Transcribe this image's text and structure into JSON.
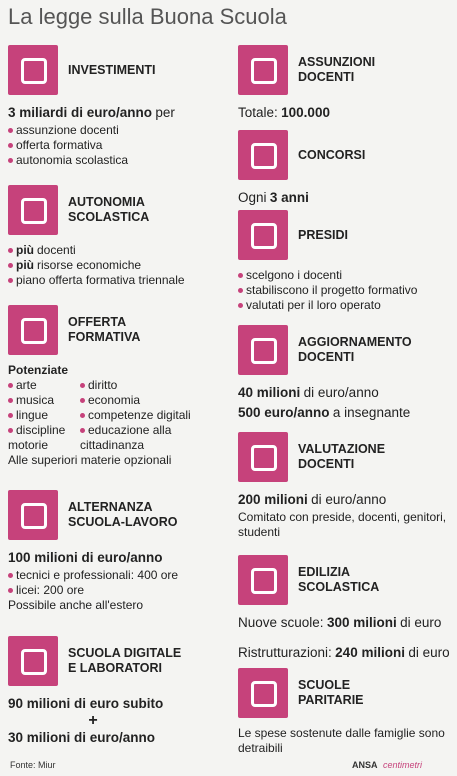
{
  "title": "La legge sulla Buona Scuola",
  "columns": [
    [
      {
        "heading": [
          "INVESTIMENTI"
        ],
        "items": [
          {
            "style": "big",
            "parts": [
              {
                "text": "3 miliardi di euro/anno",
                "bold": true
              },
              {
                "text": "per"
              }
            ]
          },
          {
            "style": "bullet",
            "parts": [
              {
                "text": "assunzione docenti"
              }
            ]
          },
          {
            "style": "bullet",
            "parts": [
              {
                "text": "offerta formativa"
              }
            ]
          },
          {
            "style": "bullet",
            "parts": [
              {
                "text": "autonomia scolastica"
              }
            ]
          }
        ]
      },
      {
        "heading": [
          "AUTONOMIA",
          "SCOLASTICA"
        ],
        "items": [
          {
            "style": "bullet",
            "parts": [
              {
                "text": "più",
                "bold": true
              },
              {
                "text": "docenti"
              }
            ]
          },
          {
            "style": "bullet",
            "parts": [
              {
                "text": "più",
                "bold": true
              },
              {
                "text": "risorse economiche"
              }
            ]
          },
          {
            "style": "bullet",
            "parts": [
              {
                "text": "piano offerta formativa triennale"
              }
            ]
          }
        ]
      },
      {
        "heading": [
          "OFFERTA",
          "FORMATIVA"
        ],
        "items": [
          {
            "style": "label",
            "parts": [
              {
                "text": "Potenziate",
                "bold": true
              }
            ]
          },
          {
            "style": "columns",
            "columns": [
              [
                "arte",
                "musica",
                "lingue",
                "discipline motorie"
              ],
              [
                "diritto",
                "economia",
                "competenze digitali",
                "educazione alla cittadinanza"
              ]
            ]
          },
          {
            "style": "plain",
            "parts": [
              {
                "text": "Alle superiori materie opzionali"
              }
            ]
          }
        ]
      },
      {
        "heading": [
          "ALTERNANZA",
          "SCUOLA-LAVORO"
        ],
        "items": [
          {
            "style": "big",
            "parts": [
              {
                "text": "100 milioni di euro/anno",
                "bold": true
              }
            ]
          },
          {
            "style": "bullet",
            "parts": [
              {
                "text": "tecnici e professionali: 400 ore"
              }
            ]
          },
          {
            "style": "bullet",
            "parts": [
              {
                "text": "licei: 200 ore"
              }
            ]
          },
          {
            "style": "plain",
            "parts": [
              {
                "text": "Possibile anche all'estero"
              }
            ]
          }
        ]
      },
      {
        "heading": [
          "SCUOLA DIGITALE",
          "E LABORATORI"
        ],
        "items": [
          {
            "style": "big",
            "parts": [
              {
                "text": "90 milioni di euro subito",
                "bold": true
              }
            ]
          },
          {
            "style": "plus",
            "parts": [
              {
                "text": "+",
                "bold": true
              }
            ]
          },
          {
            "style": "big",
            "parts": [
              {
                "text": "30 milioni di euro/anno",
                "bold": true
              }
            ]
          }
        ]
      }
    ],
    [
      {
        "heading": [
          "ASSUNZIONI",
          "DOCENTI"
        ],
        "items": [
          {
            "style": "big",
            "parts": [
              {
                "text": "Totale:"
              },
              {
                "text": "100.000",
                "bold": true
              }
            ]
          }
        ]
      },
      {
        "heading": [
          "CONCORSI"
        ],
        "items": [
          {
            "style": "big",
            "parts": [
              {
                "text": "Ogni"
              },
              {
                "text": "3 anni",
                "bold": true
              }
            ]
          }
        ]
      },
      {
        "heading": [
          "PRESIDI"
        ],
        "items": [
          {
            "style": "bullet",
            "parts": [
              {
                "text": "scelgono i docenti"
              }
            ]
          },
          {
            "style": "bullet",
            "parts": [
              {
                "text": "stabiliscono il progetto formativo"
              }
            ]
          },
          {
            "style": "bullet",
            "parts": [
              {
                "text": "valutati per il loro operato"
              }
            ]
          }
        ]
      },
      {
        "heading": [
          "AGGIORNAMENTO",
          "DOCENTI"
        ],
        "items": [
          {
            "style": "big",
            "parts": [
              {
                "text": "40 milioni",
                "bold": true
              },
              {
                "text": "di euro/anno"
              }
            ]
          },
          {
            "style": "big",
            "parts": [
              {
                "text": "500 euro/anno",
                "bold": true
              },
              {
                "text": "a insegnante"
              }
            ]
          }
        ]
      },
      {
        "heading": [
          "VALUTAZIONE",
          "DOCENTI"
        ],
        "items": [
          {
            "style": "big",
            "parts": [
              {
                "text": "200 milioni",
                "bold": true
              },
              {
                "text": "di euro/anno"
              }
            ]
          },
          {
            "style": "plain",
            "parts": [
              {
                "text": "Comitato con preside, docenti, genitori, studenti"
              }
            ]
          }
        ]
      },
      {
        "heading": [
          "EDILIZIA",
          "SCOLASTICA"
        ],
        "items": [
          {
            "style": "big",
            "parts": [
              {
                "text": "Nuove scuole:"
              },
              {
                "text": "300 milioni",
                "bold": true
              },
              {
                "text": "di euro"
              }
            ]
          },
          {
            "style": "big",
            "parts": [
              {
                "text": "Ristrutturazioni:"
              },
              {
                "text": "240 milioni",
                "bold": true
              },
              {
                "text": "di euro"
              }
            ]
          }
        ]
      },
      {
        "heading": [
          "SCUOLE",
          "PARITARIE"
        ],
        "items": [
          {
            "style": "plain",
            "parts": [
              {
                "text": "Le spese sostenute dalle famiglie sono detraibili"
              }
            ]
          }
        ]
      }
    ]
  ],
  "footer": {
    "source": "Fonte: Miur",
    "brand": "ANSA",
    "partner": "centimetri"
  }
}
